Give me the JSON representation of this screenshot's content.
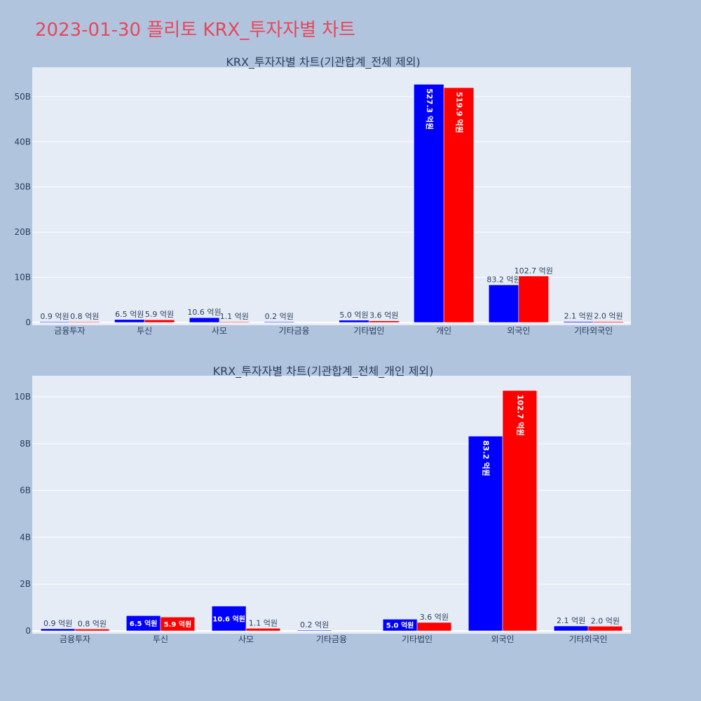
{
  "page": {
    "title": "2023-01-30 플리토 KRX_투자자별 차트"
  },
  "chart_data": [
    {
      "type": "bar",
      "title": "KRX_투자자별 차트(기관합계_전체 제외)",
      "categories": [
        "금융투자",
        "투신",
        "사모",
        "기타금융",
        "기타법인",
        "개인",
        "외국인",
        "기타외국인"
      ],
      "series": [
        {
          "color": "#0000ff",
          "values": [
            90000000,
            650000000,
            1060000000,
            20000000,
            500000000,
            52730000000,
            8320000000,
            210000000
          ],
          "labels": [
            "0.9 억원",
            "6.5 억원",
            "10.6 억원",
            "0.2 억원",
            "5.0 억원",
            "527.3 억원",
            "83.2 억원",
            "2.1 억원"
          ]
        },
        {
          "color": "#ff0000",
          "values": [
            80000000,
            590000000,
            110000000,
            0,
            360000000,
            51990000000,
            10270000000,
            200000000
          ],
          "labels": [
            "0.8 억원",
            "5.9 억원",
            "1.1 억원",
            "",
            "3.6 억원",
            "519.9 억원",
            "102.7 억원",
            "2.0 억원"
          ]
        }
      ],
      "yticks": [
        0,
        10000000000,
        20000000000,
        30000000000,
        40000000000,
        50000000000
      ],
      "ytick_labels": [
        "0",
        "10B",
        "20B",
        "30B",
        "40B",
        "50B"
      ],
      "ylim": [
        0,
        56500000000
      ],
      "grid": true
    },
    {
      "type": "bar",
      "title": "KRX_투자자별 차트(기관합계_전체_개인 제외)",
      "categories": [
        "금융투자",
        "투신",
        "사모",
        "기타금융",
        "기타법인",
        "외국인",
        "기타외국인"
      ],
      "series": [
        {
          "color": "#0000ff",
          "values": [
            90000000,
            650000000,
            1060000000,
            20000000,
            500000000,
            8320000000,
            210000000
          ],
          "labels": [
            "0.9 억원",
            "6.5 억원",
            "10.6 억원",
            "0.2 억원",
            "5.0 억원",
            "83.2 억원",
            "2.1 억원"
          ]
        },
        {
          "color": "#ff0000",
          "values": [
            80000000,
            590000000,
            110000000,
            0,
            360000000,
            10270000000,
            200000000
          ],
          "labels": [
            "0.8 억원",
            "5.9 억원",
            "1.1 억원",
            "",
            "3.6 억원",
            "102.7 억원",
            "2.0 억원"
          ]
        }
      ],
      "yticks": [
        0,
        2000000000,
        4000000000,
        6000000000,
        8000000000,
        10000000000
      ],
      "ytick_labels": [
        "0",
        "2B",
        "4B",
        "6B",
        "8B",
        "10B"
      ],
      "ylim": [
        0,
        10900000000
      ],
      "grid": true
    }
  ]
}
